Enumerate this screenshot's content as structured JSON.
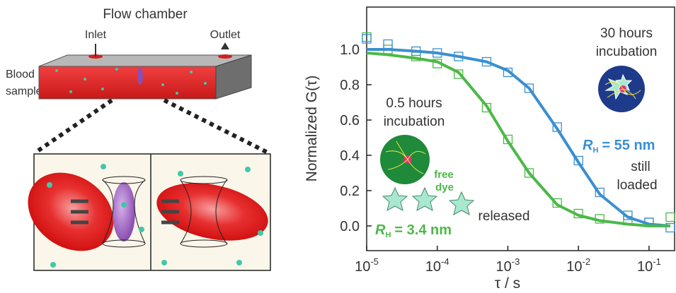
{
  "schematic": {
    "title": "Flow chamber",
    "inlet": "Inlet",
    "outlet": "Outlet",
    "sample_label": [
      "Blood",
      "sample"
    ]
  },
  "chart_data": {
    "type": "scatter-fit",
    "x_label": "τ / s",
    "y_label": "Normalized G(τ)",
    "x": [
      1e-05,
      2e-05,
      5e-05,
      0.0001,
      0.0002,
      0.0005,
      0.001,
      0.002,
      0.005,
      0.01,
      0.02,
      0.05,
      0.1,
      0.2
    ],
    "series": [
      {
        "color": "#4cb848",
        "style": "markers",
        "values": [
          1.07,
          1.0,
          0.96,
          0.92,
          0.86,
          0.67,
          0.49,
          0.3,
          0.13,
          0.07,
          0.04,
          0.03,
          0.02,
          0.05
        ]
      },
      {
        "color": "#3a8fd0",
        "style": "markers",
        "values": [
          1.06,
          1.03,
          0.99,
          0.98,
          0.96,
          0.93,
          0.87,
          0.78,
          0.56,
          0.37,
          0.19,
          0.06,
          0.02,
          -0.01
        ]
      },
      {
        "color": "#3a8fd0",
        "style": "line",
        "values": [
          1.0,
          1.0,
          0.99,
          0.98,
          0.96,
          0.93,
          0.88,
          0.78,
          0.55,
          0.36,
          0.18,
          0.05,
          0.01,
          0.0
        ]
      },
      {
        "color": "#4cb848",
        "style": "line",
        "values": [
          0.98,
          0.97,
          0.95,
          0.93,
          0.87,
          0.68,
          0.48,
          0.3,
          0.12,
          0.06,
          0.03,
          0.01,
          0.0,
          0.0
        ]
      }
    ],
    "log_x": true,
    "xlim": [
      1e-05,
      0.23
    ],
    "ylim": [
      -0.14,
      1.24
    ],
    "xticks": [
      {
        "value": 1e-05,
        "label": "10-5"
      },
      {
        "value": 0.0001,
        "label": "10-4"
      },
      {
        "value": 0.001,
        "label": "10-3"
      },
      {
        "value": 0.01,
        "label": "10-2"
      },
      {
        "value": 0.1,
        "label": "10-1"
      }
    ],
    "yticks": [
      {
        "value": 0,
        "label": "0.0"
      },
      0.2,
      0.4,
      0.6,
      0.8,
      {
        "value": 1,
        "label": "1.0"
      }
    ],
    "annotations": {
      "incubation_30h": [
        "30 hours",
        "incubation"
      ],
      "incubation_05h": [
        "0.5 hours",
        "incubation"
      ],
      "still_loaded": [
        "still",
        "loaded"
      ],
      "released": "released",
      "free_dye": [
        "free",
        "dye"
      ],
      "rh_large": {
        "symbol": "R",
        "subscript": "H",
        "text": "= 55 nm"
      },
      "rh_small": {
        "symbol": "R",
        "subscript": "H",
        "text": "= 3.4 nm"
      }
    }
  }
}
